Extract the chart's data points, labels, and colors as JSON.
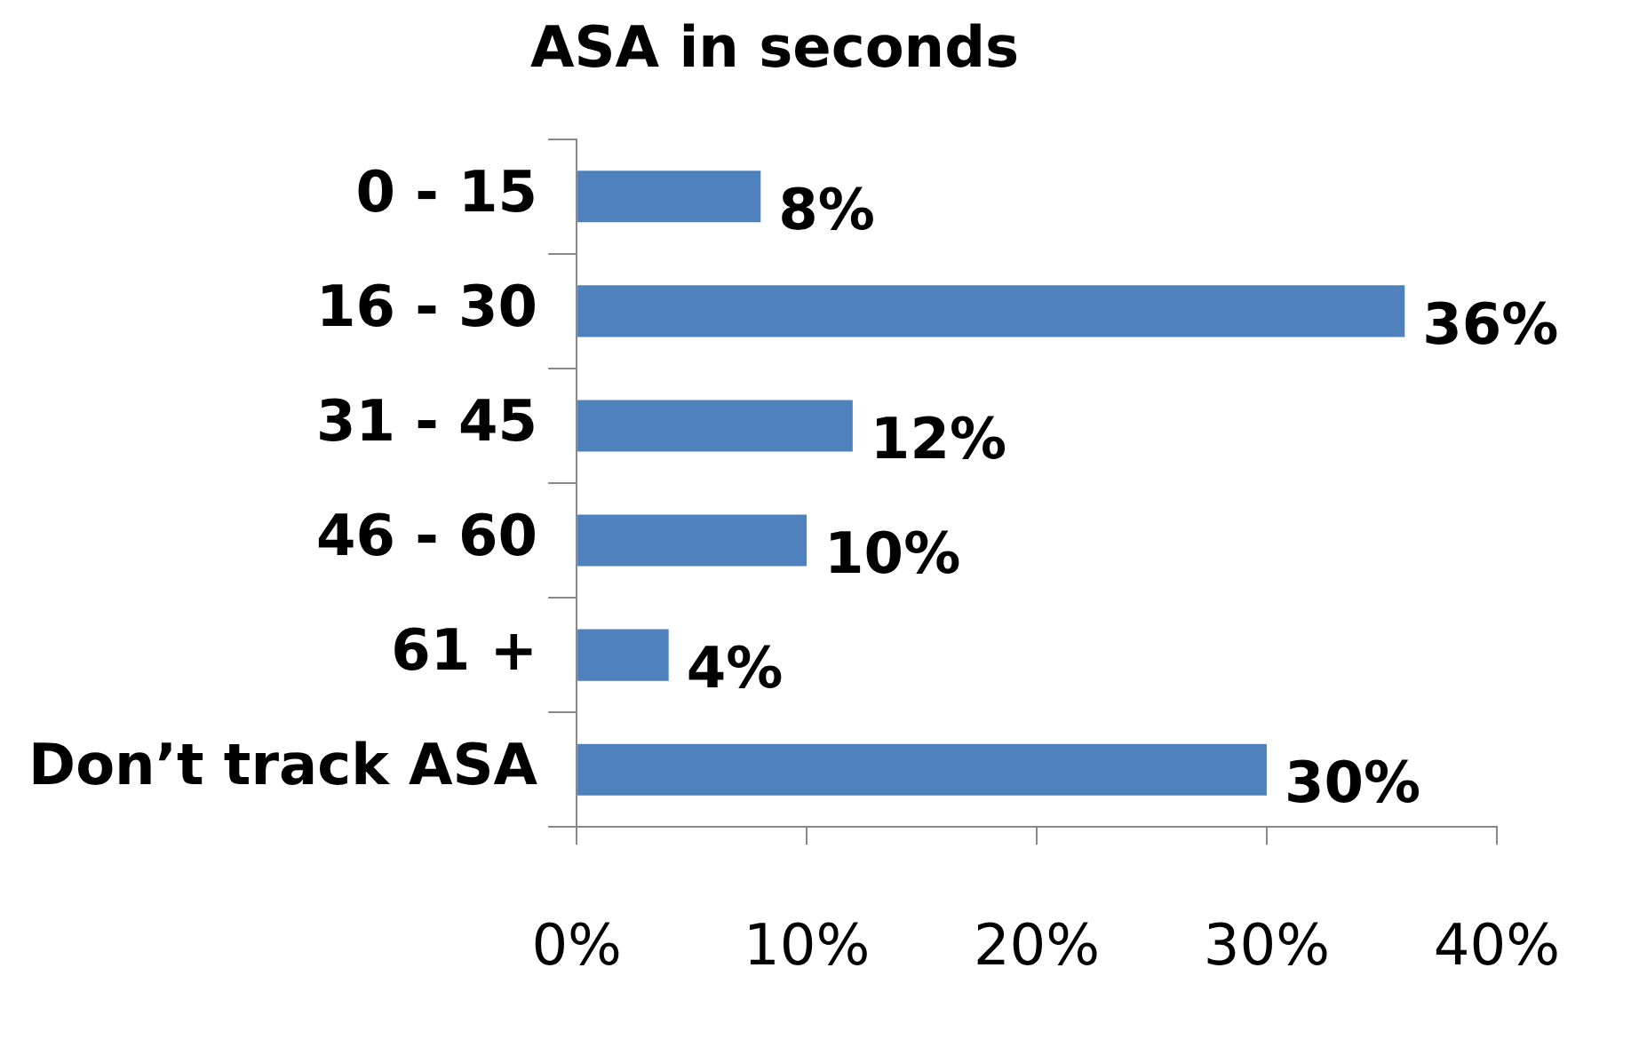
{
  "chart_data": {
    "type": "bar",
    "orientation": "horizontal",
    "title": "ASA in seconds",
    "categories": [
      "0 - 15",
      "16 - 30",
      "31 - 45",
      "46 - 60",
      "61 +",
      "Don’t track ASA"
    ],
    "values": [
      8,
      36,
      12,
      10,
      4,
      30
    ],
    "value_labels": [
      "8%",
      "36%",
      "12%",
      "10%",
      "4%",
      "30%"
    ],
    "color": "#4f81bd",
    "xlim": [
      0,
      40
    ],
    "xticks": [
      {
        "value": 0,
        "label": "0%"
      },
      {
        "value": 10,
        "label": "10%"
      },
      {
        "value": 20,
        "label": "20%"
      },
      {
        "value": 30,
        "label": "30%"
      },
      {
        "value": 40,
        "label": "40%"
      }
    ],
    "grid": false,
    "legend": false
  }
}
